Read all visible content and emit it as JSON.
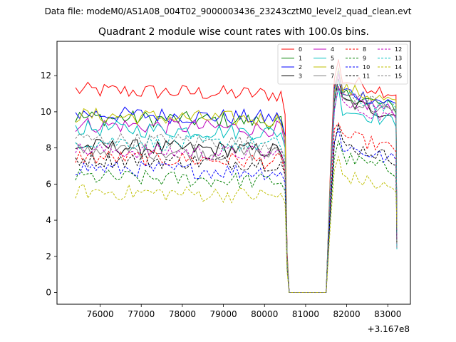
{
  "suptitle": "Data file: modeM0/AS1A08_004T02_9000003436_23243cztM0_level2_quad_clean.evt",
  "chart_data": {
    "type": "line",
    "title": "Quadrant 2 module wise count rates with 100.0s bins.",
    "xlabel": "",
    "ylabel": "",
    "x_offset_label": "+3.167e8",
    "x_offset": 316700000,
    "xlim": [
      74950,
      83550
    ],
    "ylim": [
      -0.65,
      13.9
    ],
    "x_ticks": [
      76000,
      77000,
      78000,
      79000,
      80000,
      81000,
      82000,
      83000
    ],
    "x_tick_labels": [
      "76000",
      "77000",
      "78000",
      "79000",
      "80000",
      "81000",
      "82000",
      "83000"
    ],
    "y_ticks": [
      0,
      2,
      4,
      6,
      8,
      10,
      12
    ],
    "y_tick_labels": [
      "0",
      "2",
      "4",
      "6",
      "8",
      "10",
      "12"
    ],
    "grid": false,
    "legend_position": "top-right",
    "bin_seconds": 100,
    "segments": [
      {
        "x_start": 75400,
        "x_end": 80500,
        "levels": [
          11.2,
          9.7,
          9.9,
          8.1,
          9.3,
          9.1,
          9.8,
          7.9,
          7.5,
          6.4,
          6.9,
          7.4,
          7.9,
          8.4,
          5.6,
          8.5
        ]
      },
      {
        "x_start": 81700,
        "x_end": 83200,
        "levels": [
          11.9,
          11.1,
          11.3,
          10.7,
          10.9,
          10.3,
          11.4,
          10.8,
          8.8,
          7.6,
          8.2,
          8.3,
          10.5,
          11.0,
          6.6,
          11.2
        ]
      }
    ],
    "gap": {
      "x_start": 80600,
      "x_end": 81500,
      "value": 0
    },
    "series": [
      {
        "name": "0",
        "color": "#ff0000",
        "style": "solid"
      },
      {
        "name": "1",
        "color": "#008000",
        "style": "solid"
      },
      {
        "name": "2",
        "color": "#0000ff",
        "style": "solid"
      },
      {
        "name": "3",
        "color": "#000000",
        "style": "solid"
      },
      {
        "name": "4",
        "color": "#bf00bf",
        "style": "solid"
      },
      {
        "name": "5",
        "color": "#00bfbf",
        "style": "solid"
      },
      {
        "name": "6",
        "color": "#bfbf00",
        "style": "solid"
      },
      {
        "name": "7",
        "color": "#808080",
        "style": "solid"
      },
      {
        "name": "8",
        "color": "#ff0000",
        "style": "dashed"
      },
      {
        "name": "9",
        "color": "#008000",
        "style": "dashed"
      },
      {
        "name": "10",
        "color": "#0000ff",
        "style": "dashed"
      },
      {
        "name": "11",
        "color": "#000000",
        "style": "dashed"
      },
      {
        "name": "12",
        "color": "#bf00bf",
        "style": "dashed"
      },
      {
        "name": "13",
        "color": "#00bfbf",
        "style": "dashed"
      },
      {
        "name": "14",
        "color": "#bfbf00",
        "style": "dashed"
      },
      {
        "name": "15",
        "color": "#808080",
        "style": "dashed"
      }
    ]
  }
}
